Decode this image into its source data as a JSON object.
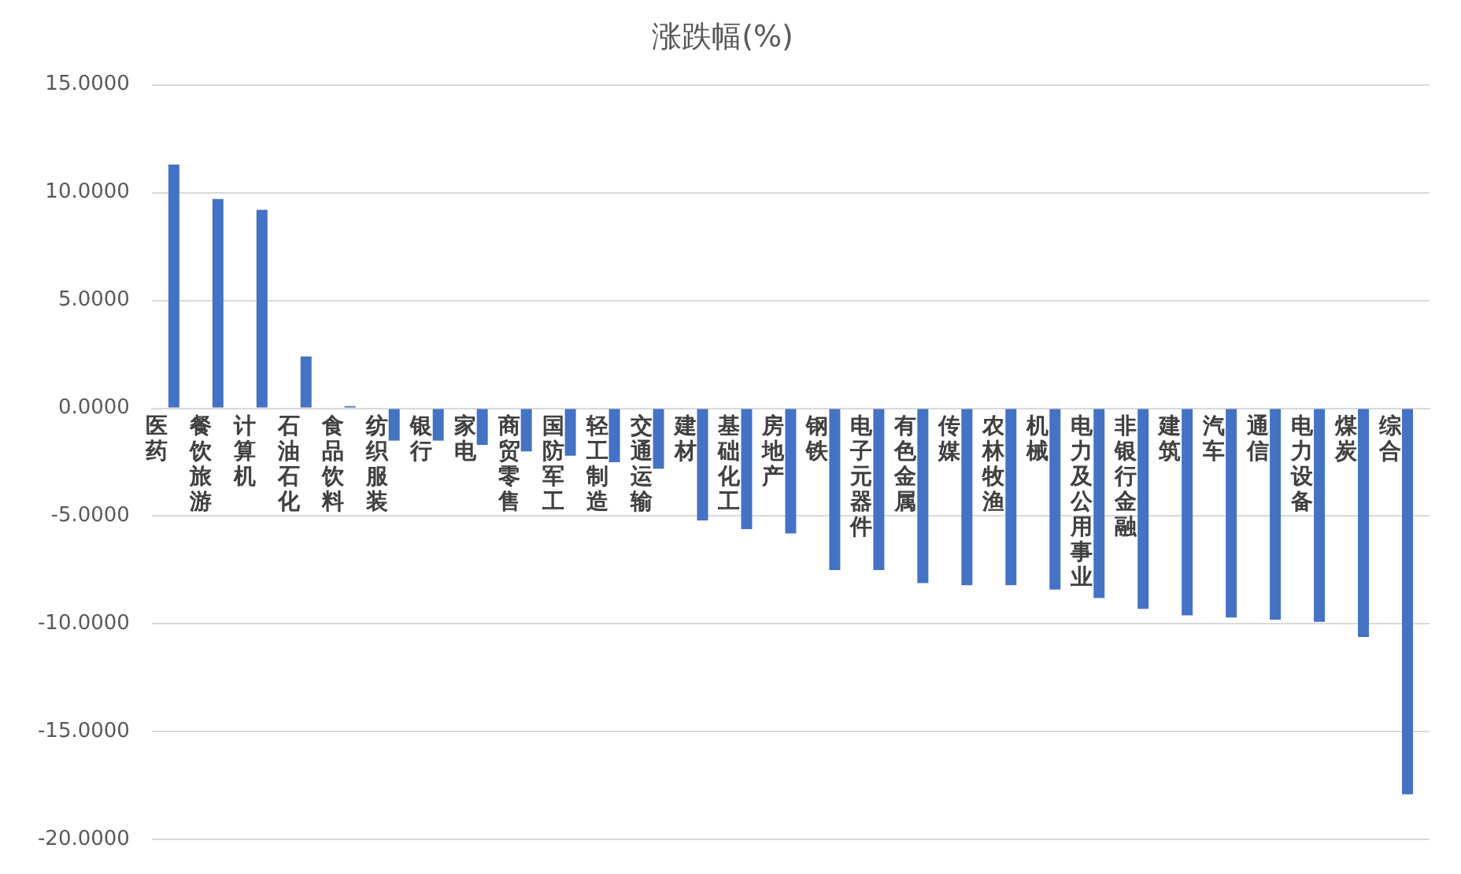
{
  "chart_data": {
    "type": "bar",
    "title": "涨跌幅(%)",
    "categories": [
      "医药",
      "餐饮旅游",
      "计算机",
      "石油石化",
      "食品饮料",
      "纺织服装",
      "银行",
      "家电",
      "商贸零售",
      "国防军工",
      "轻工制造",
      "交通运输",
      "建材",
      "基础化工",
      "房地产",
      "钢铁",
      "电子元器件",
      "有色金属",
      "传媒",
      "农林牧渔",
      "机械",
      "电力及公用事业",
      "非银行金融",
      "建筑",
      "汽车",
      "通信",
      "电力设备",
      "煤炭",
      "综合"
    ],
    "values": [
      11.3,
      9.7,
      9.2,
      2.4,
      0.1,
      -1.5,
      -1.5,
      -1.7,
      -2.0,
      -2.2,
      -2.5,
      -2.8,
      -5.2,
      -5.6,
      -5.8,
      -7.5,
      -7.5,
      -8.1,
      -8.2,
      -8.2,
      -8.4,
      -8.8,
      -9.3,
      -9.6,
      -9.7,
      -9.8,
      -9.9,
      -10.6,
      -17.9
    ],
    "color": "#4472c4",
    "ylim": [
      -20,
      15
    ],
    "yticks": [
      {
        "value": -20,
        "label": "-20.0000"
      },
      {
        "value": -15,
        "label": "-15.0000"
      },
      {
        "value": -10,
        "label": "-10.0000"
      },
      {
        "value": -5,
        "label": "-5.0000"
      },
      {
        "value": 0,
        "label": "0.0000"
      },
      {
        "value": 5,
        "label": "5.0000"
      },
      {
        "value": 10,
        "label": "10.0000"
      },
      {
        "value": 15,
        "label": "15.0000"
      }
    ],
    "grid": "y",
    "legend": false
  }
}
